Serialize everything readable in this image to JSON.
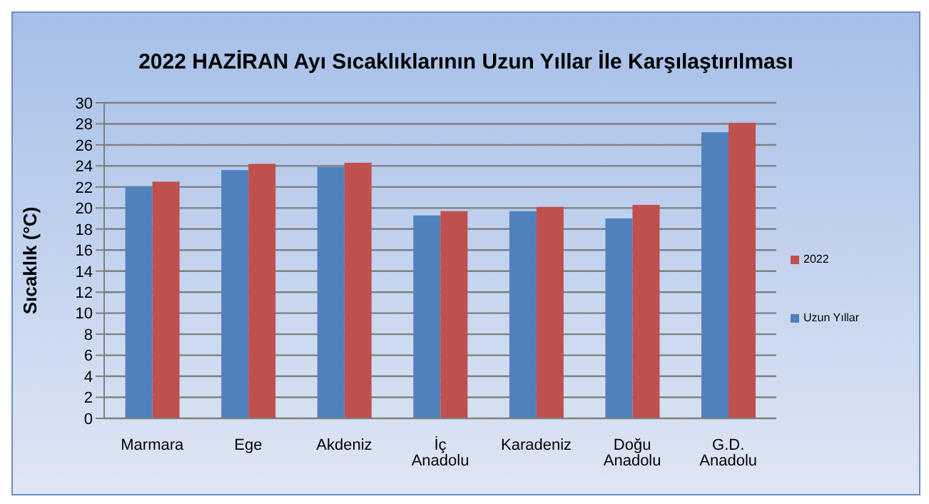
{
  "chart_data": {
    "type": "bar",
    "title": "2022 HAZİRAN Ayı Sıcaklıklarının Uzun Yıllar İle Karşılaştırılması",
    "ylabel": "Sıcaklık (°C)",
    "categories": [
      "Marmara",
      "Ege",
      "Akdeniz",
      "İç Anadolu",
      "Karadeniz",
      "Doğu Anadolu",
      "G.D. Anadolu"
    ],
    "series": [
      {
        "name": "Uzun Yıllar",
        "color": "#4f81bd",
        "values": [
          22.0,
          23.6,
          23.9,
          19.3,
          19.7,
          19.0,
          27.2
        ]
      },
      {
        "name": "2022",
        "color": "#c0504d",
        "values": [
          22.5,
          24.2,
          24.3,
          19.7,
          20.1,
          20.3,
          28.1
        ]
      }
    ],
    "ylim": [
      0,
      30
    ],
    "yticks": [
      0,
      2,
      4,
      6,
      8,
      10,
      12,
      14,
      16,
      18,
      20,
      22,
      24,
      26,
      28,
      30
    ],
    "grid": "y",
    "legend": "right"
  }
}
